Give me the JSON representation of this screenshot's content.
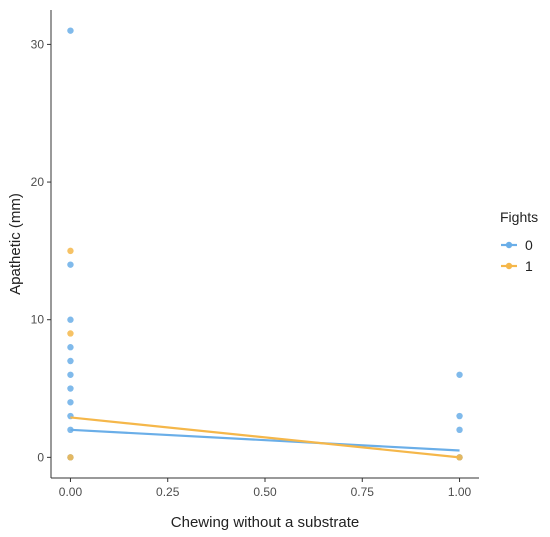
{
  "chart_data": {
    "type": "scatter",
    "title": "",
    "xlabel": "Chewing without a substrate",
    "ylabel": "Apathetic (mm)",
    "xlim": [
      -0.05,
      1.05
    ],
    "ylim": [
      -1.5,
      32.5
    ],
    "x_ticks": [
      {
        "value": 0,
        "label": "0.00"
      },
      {
        "value": 0.25,
        "label": "0.25"
      },
      {
        "value": 0.5,
        "label": "0.50"
      },
      {
        "value": 0.75,
        "label": "0.75"
      },
      {
        "value": 1,
        "label": "1.00"
      }
    ],
    "y_ticks": [
      {
        "value": 0,
        "label": "0"
      },
      {
        "value": 10,
        "label": "10"
      },
      {
        "value": 20,
        "label": "20"
      },
      {
        "value": 30,
        "label": "30"
      }
    ],
    "grid": false,
    "legend": {
      "title": "Fights",
      "placement": "right"
    },
    "series": [
      {
        "name": "0",
        "color": "#6aaee8",
        "points": [
          [
            0,
            31
          ],
          [
            0,
            14
          ],
          [
            0,
            10
          ],
          [
            0,
            8
          ],
          [
            0,
            7
          ],
          [
            0,
            6
          ],
          [
            0,
            5
          ],
          [
            0,
            4
          ],
          [
            0,
            3
          ],
          [
            0,
            2
          ],
          [
            0,
            0
          ],
          [
            1,
            6
          ],
          [
            1,
            3
          ],
          [
            1,
            2
          ],
          [
            1,
            0
          ]
        ],
        "fit_line": [
          [
            0,
            2.0
          ],
          [
            1,
            0.5
          ]
        ]
      },
      {
        "name": "1",
        "color": "#f5b74a",
        "points": [
          [
            0,
            15
          ],
          [
            0,
            9
          ],
          [
            0,
            0
          ],
          [
            1,
            0
          ]
        ],
        "fit_line": [
          [
            0,
            2.9
          ],
          [
            1,
            0.0
          ]
        ]
      }
    ]
  }
}
